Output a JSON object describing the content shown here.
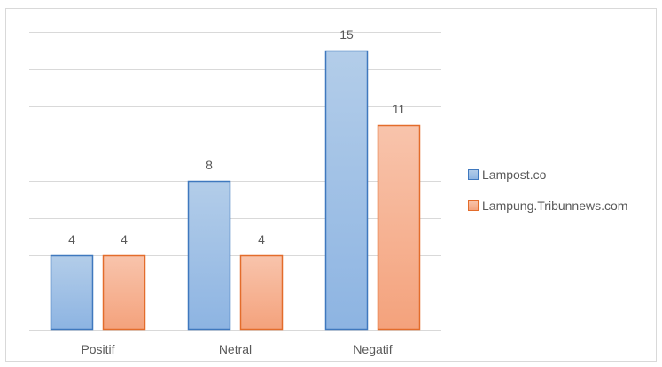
{
  "chart_data": {
    "type": "bar",
    "categories": [
      "Positif",
      "Netral",
      "Negatif"
    ],
    "series": [
      {
        "name": "Lampost.co",
        "values": [
          4,
          8,
          15
        ],
        "color": "#5b9bd5",
        "fill_top": "#b3cde9",
        "fill_bottom": "#8db4e2",
        "stroke": "#3f78be"
      },
      {
        "name": "Lampung.Tribunnews.com",
        "values": [
          4,
          4,
          11
        ],
        "color": "#ed7d31",
        "fill_top": "#f8c4ac",
        "fill_bottom": "#f4a27c",
        "stroke": "#e36c2b"
      }
    ],
    "ylim": [
      0,
      16
    ],
    "grid": true,
    "legend_position": "right",
    "data_labels": true,
    "title": "",
    "xlabel": "",
    "ylabel": ""
  }
}
